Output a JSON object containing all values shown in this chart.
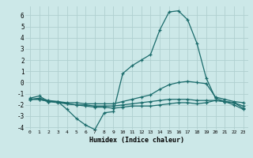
{
  "xlabel": "Humidex (Indice chaleur)",
  "bg_color": "#cce8e8",
  "grid_color": "#b0d0d0",
  "line_color": "#1a6b6b",
  "xlim": [
    -0.5,
    23.5
  ],
  "ylim": [
    -4.2,
    6.8
  ],
  "yticks": [
    -4,
    -3,
    -2,
    -1,
    0,
    1,
    2,
    3,
    4,
    5,
    6
  ],
  "xtick_labels": [
    "0",
    "1",
    "2",
    "3",
    "4",
    "5",
    "6",
    "7",
    "8",
    "9",
    "10",
    "11",
    "12",
    "13",
    "14",
    "15",
    "16",
    "17",
    "18",
    "19",
    "20",
    "21",
    "22",
    "23"
  ],
  "series": [
    {
      "x": [
        0,
        1,
        2,
        3,
        4,
        5,
        6,
        7,
        8,
        9,
        10,
        11,
        12,
        13,
        14,
        15,
        16,
        17,
        18,
        19,
        20,
        21,
        22,
        23
      ],
      "y": [
        -1.4,
        -1.2,
        -1.7,
        -1.7,
        -2.4,
        -3.2,
        -3.8,
        -4.2,
        -2.7,
        -2.6,
        0.8,
        1.5,
        2.0,
        2.5,
        4.7,
        6.3,
        6.4,
        5.6,
        3.5,
        0.4,
        -1.4,
        -1.7,
        -2.0,
        -2.4
      ]
    },
    {
      "x": [
        0,
        1,
        2,
        3,
        4,
        5,
        6,
        7,
        8,
        9,
        10,
        11,
        12,
        13,
        14,
        15,
        16,
        17,
        18,
        19,
        20,
        21,
        22,
        23
      ],
      "y": [
        -1.5,
        -1.4,
        -1.6,
        -1.7,
        -1.8,
        -1.8,
        -1.9,
        -1.9,
        -1.9,
        -1.9,
        -1.7,
        -1.5,
        -1.3,
        -1.1,
        -0.6,
        -0.2,
        0.0,
        0.1,
        0.0,
        -0.1,
        -1.3,
        -1.5,
        -1.7,
        -1.8
      ]
    },
    {
      "x": [
        0,
        1,
        2,
        3,
        4,
        5,
        6,
        7,
        8,
        9,
        10,
        11,
        12,
        13,
        14,
        15,
        16,
        17,
        18,
        19,
        20,
        21,
        22,
        23
      ],
      "y": [
        -1.5,
        -1.5,
        -1.7,
        -1.7,
        -1.9,
        -2.0,
        -2.0,
        -2.1,
        -2.1,
        -2.1,
        -2.0,
        -1.9,
        -1.8,
        -1.7,
        -1.6,
        -1.5,
        -1.5,
        -1.5,
        -1.6,
        -1.6,
        -1.6,
        -1.7,
        -1.8,
        -2.1
      ]
    },
    {
      "x": [
        0,
        1,
        2,
        3,
        4,
        5,
        6,
        7,
        8,
        9,
        10,
        11,
        12,
        13,
        14,
        15,
        16,
        17,
        18,
        19,
        20,
        21,
        22,
        23
      ],
      "y": [
        -1.5,
        -1.5,
        -1.7,
        -1.8,
        -1.9,
        -2.0,
        -2.1,
        -2.2,
        -2.2,
        -2.3,
        -2.2,
        -2.1,
        -2.1,
        -2.1,
        -2.0,
        -1.9,
        -1.8,
        -1.8,
        -1.9,
        -1.8,
        -1.6,
        -1.7,
        -1.8,
        -2.3
      ]
    }
  ]
}
